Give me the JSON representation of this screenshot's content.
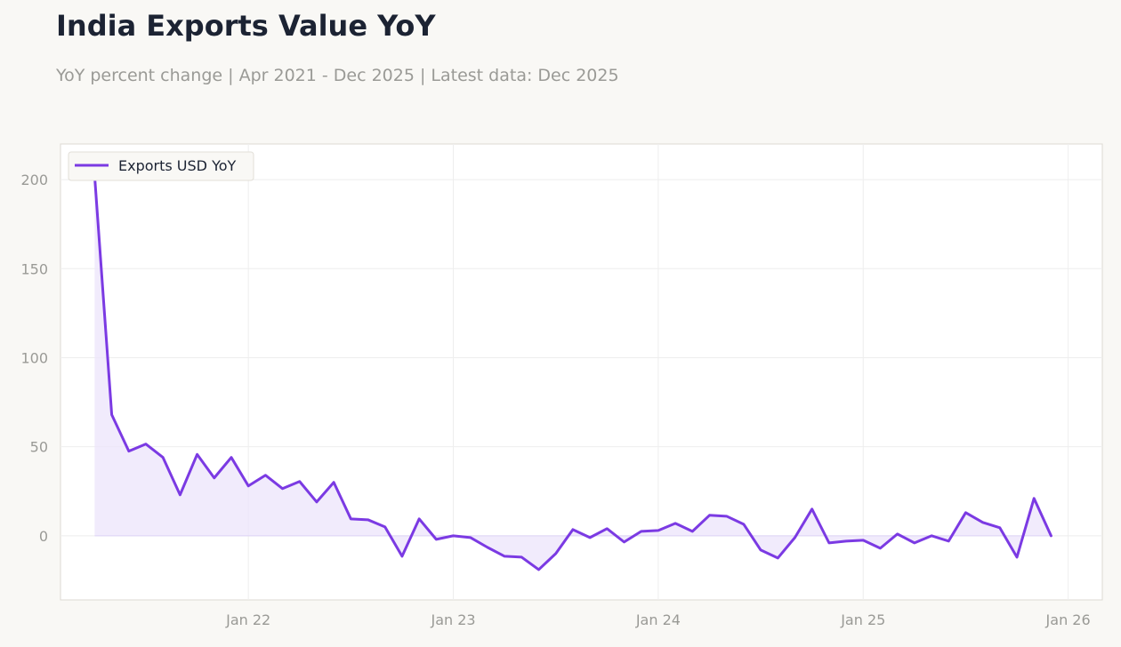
{
  "title": "India Exports Value YoY",
  "subtitle": "YoY percent change | Apr 2021 - Dec 2025 | Latest data: Dec 2025",
  "colors": {
    "line": "#7b3ae3",
    "fill": "#ece4fb",
    "grid": "#eeeeee",
    "axis_text": "#9a9a96",
    "background": "#f9f8f5",
    "plot_background": "#ffffff"
  },
  "chart_data": {
    "type": "line",
    "title": "India Exports Value YoY",
    "subtitle": "YoY percent change | Apr 2021 - Dec 2025 | Latest data: Dec 2025",
    "xlabel": "",
    "ylabel": "",
    "x_start": "Apr 2021",
    "x_end": "Dec 2025",
    "x_range": [
      "2021-02",
      "2026-03"
    ],
    "ylim": [
      -36,
      220
    ],
    "y_ticks": [
      0,
      50,
      100,
      150,
      200
    ],
    "x_ticks": [
      {
        "date": "2022-01",
        "label": "Jan 22"
      },
      {
        "date": "2023-01",
        "label": "Jan 23"
      },
      {
        "date": "2024-01",
        "label": "Jan 24"
      },
      {
        "date": "2025-01",
        "label": "Jan 25"
      },
      {
        "date": "2026-01",
        "label": "Jan 26"
      }
    ],
    "grid": true,
    "legend_position": "top-left",
    "series": [
      {
        "name": "Exports USD YoY",
        "area_fill": true,
        "x": [
          "2021-04",
          "2021-05",
          "2021-06",
          "2021-07",
          "2021-08",
          "2021-09",
          "2021-10",
          "2021-11",
          "2021-12",
          "2022-01",
          "2022-02",
          "2022-03",
          "2022-04",
          "2022-05",
          "2022-06",
          "2022-07",
          "2022-08",
          "2022-09",
          "2022-10",
          "2022-11",
          "2022-12",
          "2023-01",
          "2023-02",
          "2023-03",
          "2023-04",
          "2023-05",
          "2023-06",
          "2023-07",
          "2023-08",
          "2023-09",
          "2023-10",
          "2023-11",
          "2023-12",
          "2024-01",
          "2024-02",
          "2024-03",
          "2024-04",
          "2024-05",
          "2024-06",
          "2024-07",
          "2024-08",
          "2024-09",
          "2024-10",
          "2024-11",
          "2024-12",
          "2025-01",
          "2025-02",
          "2025-03",
          "2025-04",
          "2025-05",
          "2025-06",
          "2025-07",
          "2025-08",
          "2025-09",
          "2025-10",
          "2025-11",
          "2025-12"
        ],
        "values": [
          202,
          68,
          47.5,
          51.5,
          44,
          23,
          45.7,
          32.5,
          44,
          28,
          34,
          26.5,
          30.5,
          19,
          30,
          9.5,
          9,
          5,
          -11.5,
          9.5,
          -2,
          0,
          -1,
          -6.5,
          -11.5,
          -12,
          -19,
          -10,
          3.5,
          -1,
          4,
          -3.5,
          2.5,
          3,
          7,
          2.5,
          11.5,
          11,
          6.5,
          -8,
          -12.5,
          -1,
          15,
          -4,
          -3,
          -2.5,
          -7,
          1,
          -4,
          0,
          -3,
          13,
          7.5,
          4.5,
          -12,
          21,
          0
        ]
      }
    ]
  }
}
